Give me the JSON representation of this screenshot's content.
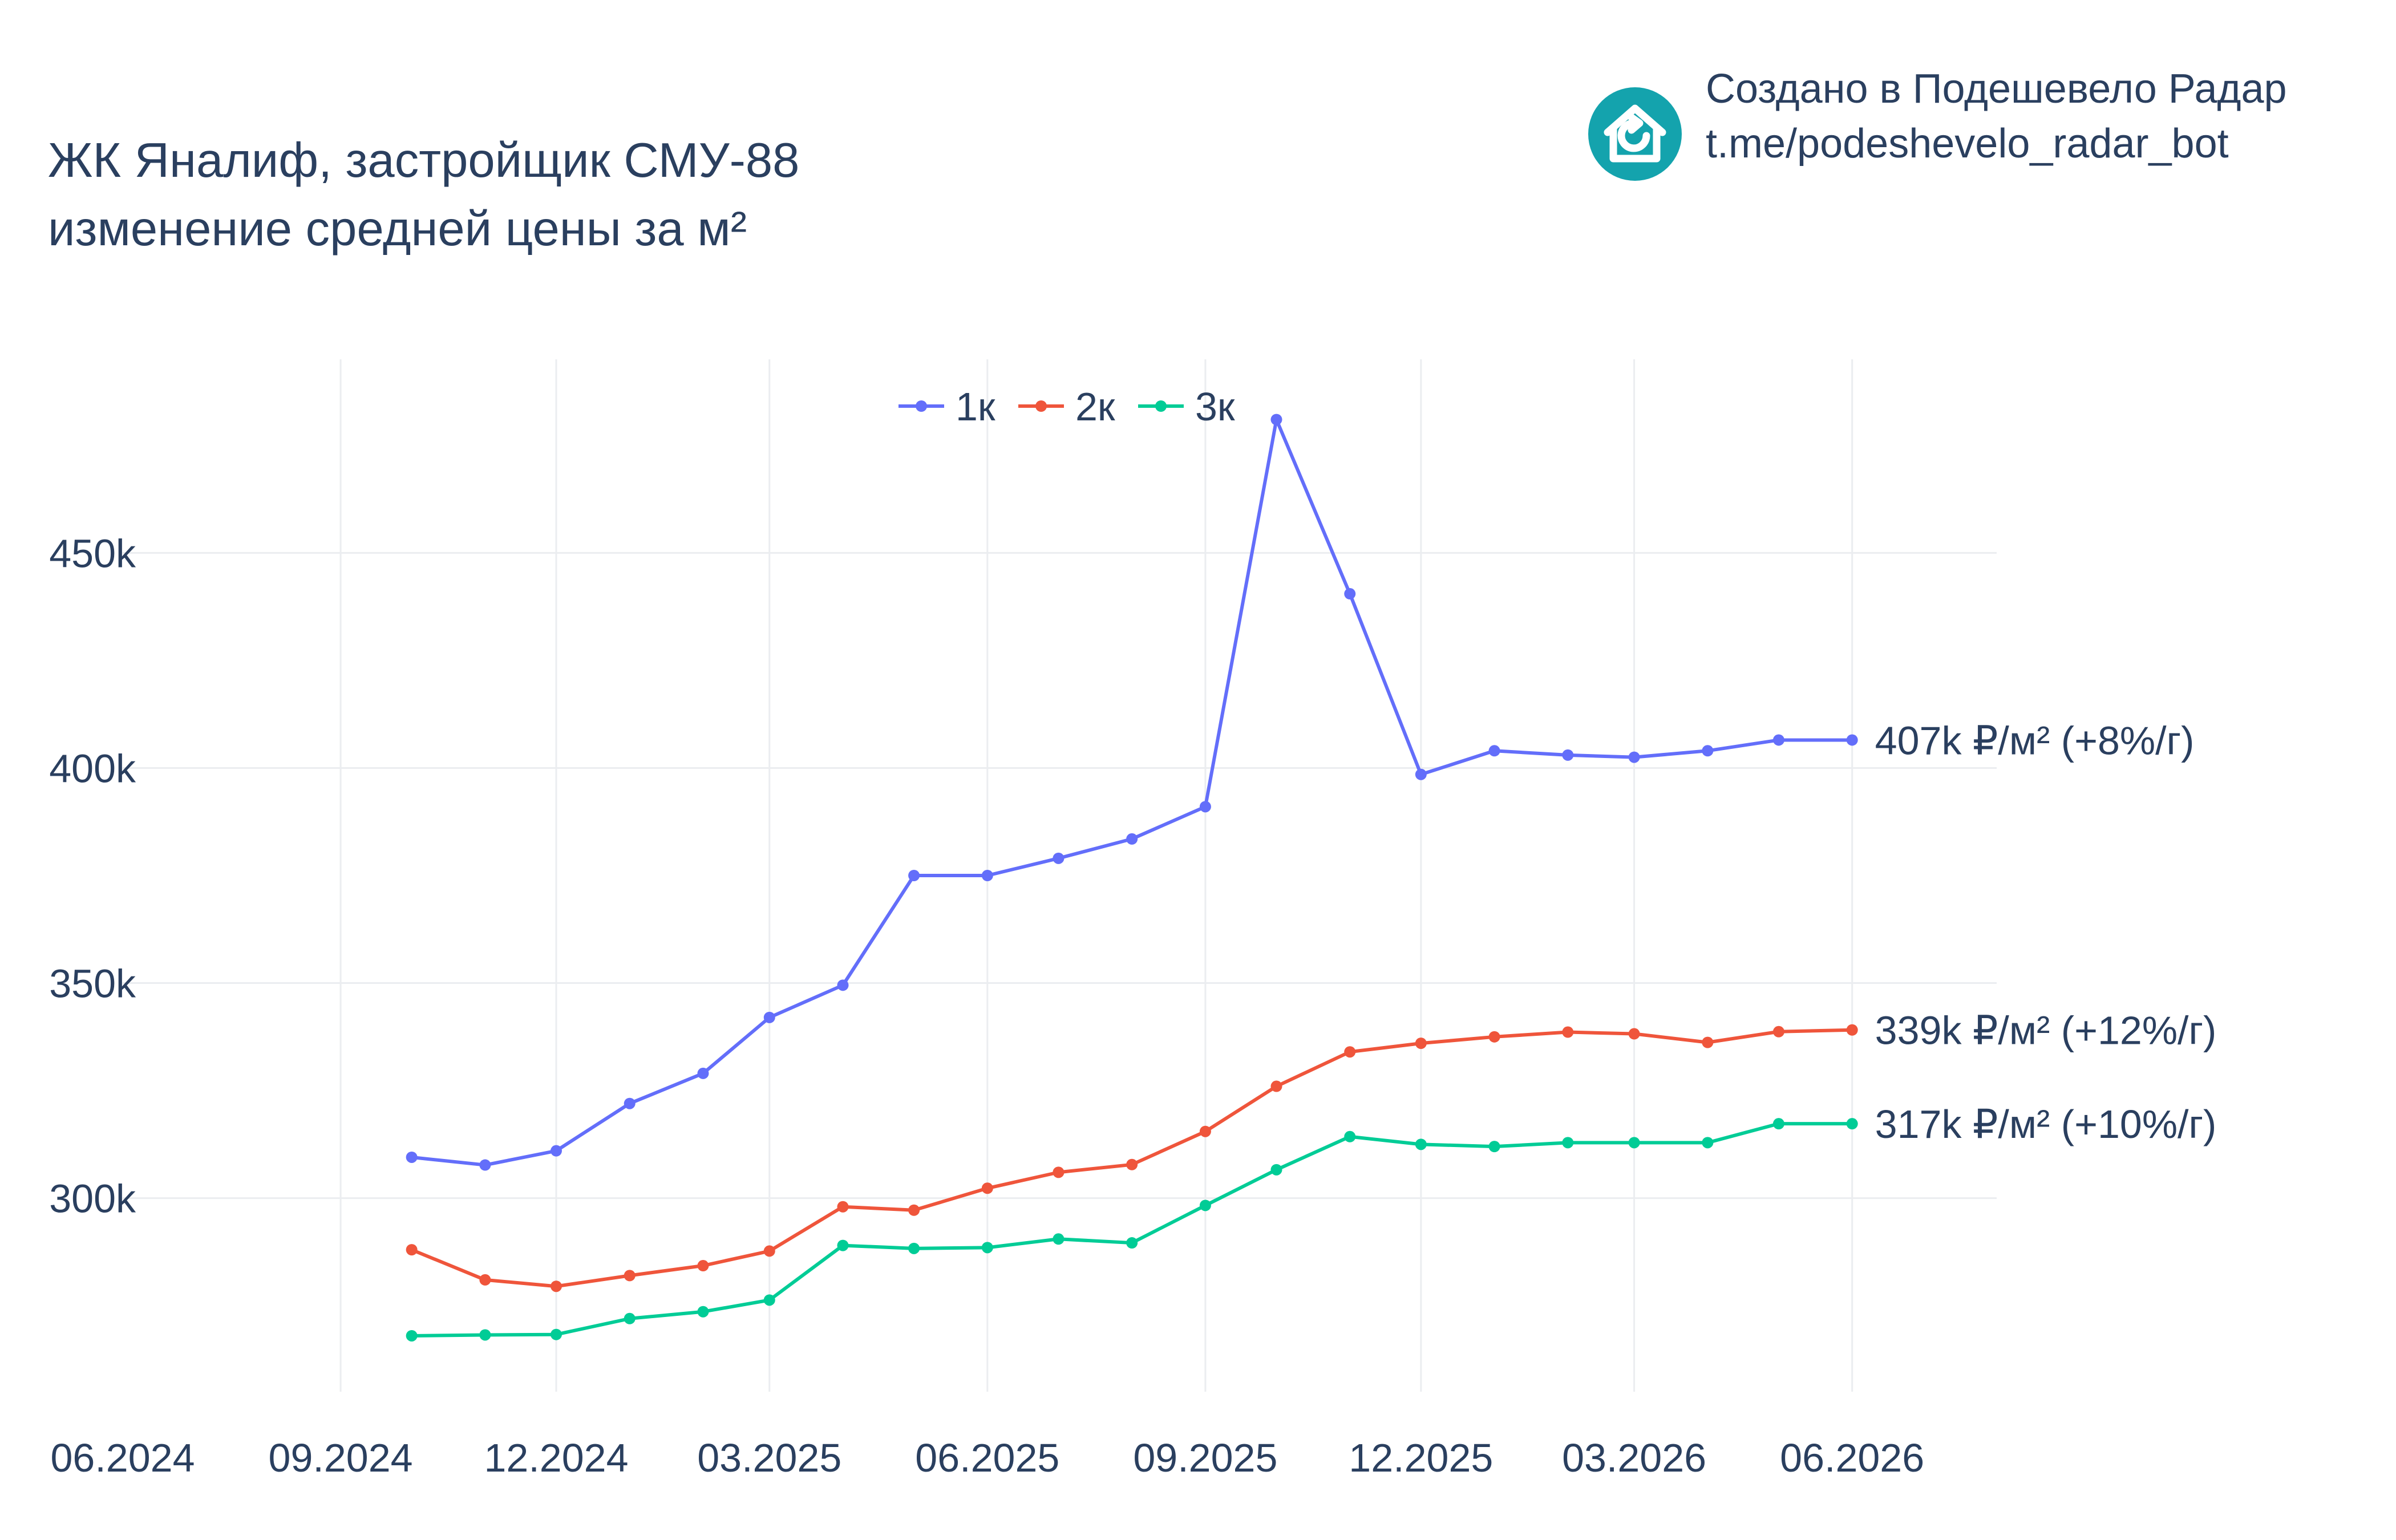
{
  "title": {
    "line1": "ЖК Яналиф, застройщик СМУ-88",
    "line2": "изменение средней цены за м²"
  },
  "credit": {
    "line1": "Создано в Подешевело Радар",
    "line2": "t.me/podeshevelo_radar_bot",
    "logo_icon": "house-refresh-icon",
    "logo_color": "#14a3ad"
  },
  "chart_data": {
    "type": "line",
    "title": "ЖК Яналиф, застройщик СМУ-88 изменение средней цены за м²",
    "xlabel": "",
    "ylabel": "",
    "x_tick_labels": [
      "06.2024",
      "09.2024",
      "12.2024",
      "03.2025",
      "06.2025",
      "09.2025",
      "12.2025",
      "03.2026",
      "06.2026"
    ],
    "y_tick_labels": [
      "300k",
      "350k",
      "400k",
      "450k"
    ],
    "y_ticks": [
      300000,
      350000,
      400000,
      450000
    ],
    "xlim": [
      "2024-06-01",
      "2026-08-01"
    ],
    "ylim": [
      255000,
      495000
    ],
    "grid": true,
    "legend_position": "top-center",
    "x": [
      "2024-10-01",
      "2024-11-01",
      "2024-12-01",
      "2025-01-01",
      "2025-02-01",
      "2025-03-01",
      "2025-04-01",
      "2025-05-01",
      "2025-06-01",
      "2025-07-01",
      "2025-08-01",
      "2025-09-01",
      "2025-10-01",
      "2025-11-01",
      "2025-12-01",
      "2026-01-01",
      "2026-02-01",
      "2026-03-01",
      "2026-04-01",
      "2026-05-01",
      "2026-06-01"
    ],
    "series": [
      {
        "name": "1к",
        "color": "#636efa",
        "end_label": "407k ₽/м² (+8%/г)",
        "values": [
          309500,
          307700,
          311000,
          322000,
          329000,
          342000,
          349500,
          375000,
          375000,
          379000,
          383500,
          391000,
          481000,
          440500,
          398500,
          404000,
          403000,
          402500,
          404000,
          406500,
          406500
        ]
      },
      {
        "name": "2к",
        "color": "#ef553b",
        "end_label": "339k ₽/м² (+12%/г)",
        "values": [
          288000,
          281000,
          279500,
          282000,
          284300,
          287700,
          298000,
          297200,
          302300,
          306000,
          307800,
          315500,
          326000,
          334000,
          336000,
          337500,
          338600,
          338200,
          336200,
          338700,
          339100
        ]
      },
      {
        "name": "3к",
        "color": "#00cc96",
        "end_label": "317k ₽/м² (+10%/г)",
        "values": [
          268000,
          268200,
          268300,
          272000,
          273600,
          276300,
          289000,
          288300,
          288500,
          290500,
          289600,
          298300,
          306600,
          314300,
          312500,
          312000,
          312900,
          312900,
          312900,
          317300,
          317300
        ]
      }
    ]
  }
}
